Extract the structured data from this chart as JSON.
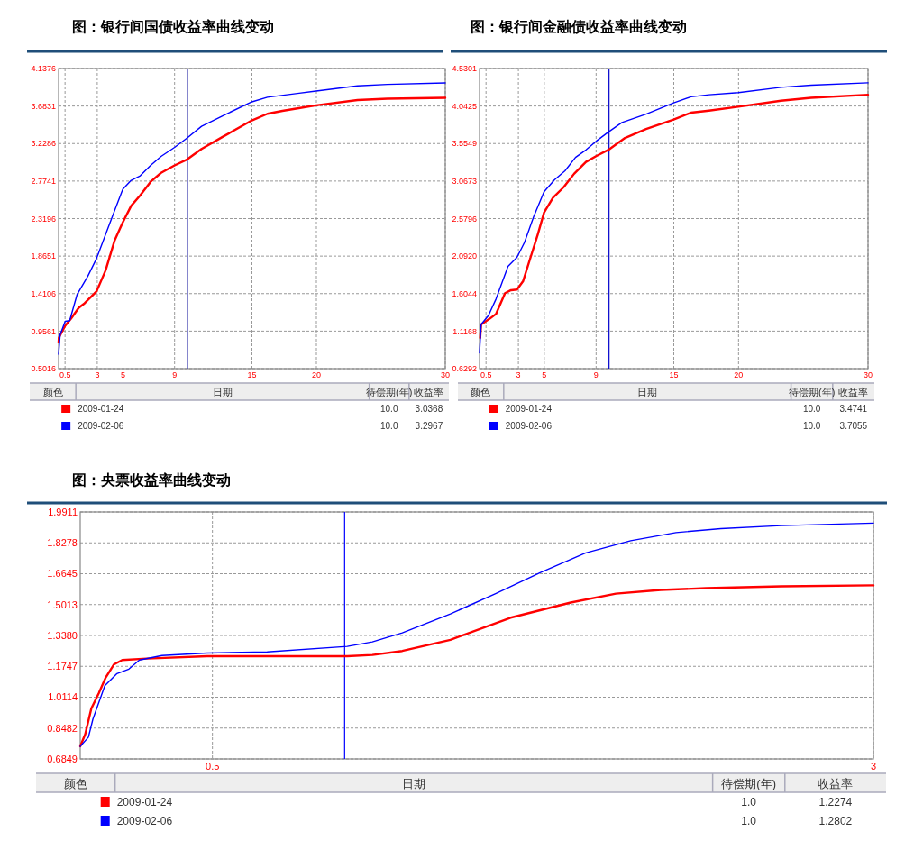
{
  "chart_data": [
    {
      "type": "line",
      "title": "图：银行间国债收益率曲线变动",
      "xlim": [
        0,
        30
      ],
      "xticks": [
        0.5,
        3,
        5,
        9,
        15,
        20,
        30
      ],
      "ylim": [
        0.5016,
        4.1376
      ],
      "yticks": [
        0.5016,
        0.9561,
        1.4106,
        1.8651,
        2.3196,
        2.7741,
        3.2286,
        3.6831,
        4.1376
      ],
      "grid": true,
      "legend": "bottom",
      "marker": "none",
      "line_style": "solid",
      "series": [
        {
          "name": "2009-01-24",
          "color": "#ff0000",
          "x": [
            0,
            0.02,
            0.51,
            0.98,
            1.56,
            2.02,
            2.95,
            3.65,
            4.35,
            4.98,
            5.63,
            6.33,
            7.14,
            7.95,
            9.0,
            9.98,
            11.09,
            12.72,
            15.0,
            16.2,
            17.37,
            18.53,
            19.98,
            23.19,
            25.51,
            30
          ],
          "values": [
            0.821,
            0.876,
            1.021,
            1.111,
            1.239,
            1.294,
            1.439,
            1.693,
            2.056,
            2.274,
            2.474,
            2.601,
            2.765,
            2.874,
            2.964,
            3.037,
            3.164,
            3.309,
            3.509,
            3.589,
            3.625,
            3.654,
            3.691,
            3.756,
            3.771,
            3.782
          ]
        },
        {
          "name": "2009-02-06",
          "color": "#0000ff",
          "x": [
            0,
            0.12,
            0.51,
            0.86,
            1.44,
            2.26,
            2.95,
            3.65,
            4.35,
            4.98,
            5.63,
            6.33,
            7.14,
            7.95,
            9.0,
            9.98,
            11.09,
            12.72,
            15.0,
            16.2,
            18.53,
            19.98,
            23.19,
            25.51,
            30
          ],
          "values": [
            0.676,
            0.912,
            1.075,
            1.083,
            1.402,
            1.62,
            1.838,
            2.129,
            2.419,
            2.674,
            2.783,
            2.837,
            2.964,
            3.073,
            3.182,
            3.297,
            3.437,
            3.564,
            3.734,
            3.789,
            3.836,
            3.865,
            3.927,
            3.945,
            3.963
          ]
        }
      ],
      "ref_lines": [
        {
          "axis": "x",
          "value": 10,
          "color": "#3333aa"
        }
      ],
      "annotations": [
        "颜色",
        "日期",
        "待偿期(年)",
        "收益率",
        "10.0",
        "3.0368",
        "10.0",
        "3.2967"
      ]
    },
    {
      "type": "line",
      "title": "图：银行间金融债收益率曲线变动",
      "xlim": [
        0,
        30
      ],
      "xticks": [
        0.5,
        3,
        5,
        9,
        15,
        20,
        30
      ],
      "ylim": [
        0.6292,
        4.5301
      ],
      "yticks": [
        0.6292,
        1.1168,
        1.6044,
        {
          "value": 2.092,
          "label": "2.0920"
        },
        2.5796,
        3.0673,
        3.5549,
        4.0425,
        4.5301
      ],
      "grid": true,
      "legend": "bottom",
      "marker": "none",
      "line_style": "solid",
      "series": [
        {
          "name": "2009-01-24",
          "color": "#ff0000",
          "x": [
            0.05,
            0.12,
            0.81,
            1.27,
            1.97,
            2.43,
            2.89,
            3.36,
            3.94,
            4.52,
            4.98,
            5.67,
            6.49,
            7.3,
            8.22,
            9.03,
            9.96,
            11.23,
            12.86,
            14.99,
            16.33,
            17.72,
            19.99,
            23.28,
            25.6,
            30
          ],
          "values": [
            1.029,
            1.203,
            1.281,
            1.339,
            1.61,
            1.649,
            1.657,
            1.765,
            2.076,
            2.386,
            2.658,
            2.851,
            2.987,
            3.161,
            3.316,
            3.394,
            3.474,
            3.627,
            3.743,
            3.867,
            3.956,
            3.983,
            4.034,
            4.112,
            4.15,
            4.189
          ]
        },
        {
          "name": "2009-02-06",
          "color": "#0000ff",
          "x": [
            0,
            0.12,
            0.69,
            1.27,
            2.2,
            2.89,
            3.47,
            4.17,
            4.98,
            5.79,
            6.6,
            7.41,
            8.22,
            9.03,
            9.96,
            11.0,
            12.86,
            14.99,
            16.33,
            17.72,
            19.99,
            23.28,
            25.6,
            30
          ],
          "values": [
            0.835,
            1.203,
            1.32,
            1.533,
            1.959,
            2.076,
            2.269,
            2.599,
            2.929,
            3.084,
            3.2,
            3.375,
            3.472,
            3.588,
            3.705,
            3.828,
            3.937,
            4.084,
            4.162,
            4.189,
            4.216,
            4.286,
            4.313,
            4.344
          ]
        }
      ],
      "ref_lines": [
        {
          "axis": "x",
          "value": 10,
          "color": "#0000cc"
        }
      ],
      "annotations": [
        "颜色",
        "日期",
        "待偿期(年)",
        "收益率",
        "10.0",
        "3.4741",
        "10.0",
        "3.7055"
      ]
    },
    {
      "type": "line",
      "title": "图：央票收益率曲线变动",
      "xlim": [
        0,
        3
      ],
      "xticks": [
        0.5,
        3
      ],
      "ylim": [
        0.6849,
        1.9911
      ],
      "yticks": [
        0.6849,
        0.8482,
        1.0114,
        1.1747,
        {
          "value": 1.338,
          "label": "1.3380"
        },
        1.5013,
        1.6645,
        1.8278,
        1.9911
      ],
      "grid": true,
      "legend": "bottom",
      "marker": "none",
      "line_style": "solid",
      "series": [
        {
          "name": "2009-01-24",
          "color": "#ff0000",
          "x": [
            0,
            0.019,
            0.042,
            0.07,
            0.095,
            0.127,
            0.159,
            0.252,
            0.48,
            1.01,
            1.105,
            1.218,
            1.4,
            1.628,
            1.855,
            2.026,
            2.196,
            2.367,
            2.651,
            3.0
          ],
          "values": [
            0.752,
            0.816,
            0.952,
            1.032,
            1.112,
            1.184,
            1.208,
            1.216,
            1.228,
            1.228,
            1.235,
            1.256,
            1.315,
            1.432,
            1.512,
            1.559,
            1.579,
            1.588,
            1.598,
            1.603
          ]
        },
        {
          "name": "2009-02-06",
          "color": "#0000ff",
          "x": [
            0,
            0.031,
            0.048,
            0.093,
            0.139,
            0.184,
            0.224,
            0.309,
            0.48,
            0.707,
            1.01,
            1.105,
            1.218,
            1.4,
            1.571,
            1.741,
            1.912,
            2.082,
            2.253,
            2.423,
            2.651,
            3.0
          ],
          "values": [
            0.752,
            0.8,
            0.896,
            1.072,
            1.136,
            1.16,
            1.208,
            1.232,
            1.245,
            1.251,
            1.28,
            1.304,
            1.352,
            1.452,
            1.559,
            1.671,
            1.775,
            1.839,
            1.882,
            1.903,
            1.919,
            1.932
          ]
        }
      ],
      "ref_lines": [
        {
          "axis": "x",
          "value": 1,
          "color": "#0000ff"
        }
      ],
      "annotations": [
        "颜色",
        "日期",
        "待偿期(年)",
        "收益率",
        "1.0",
        "1.2274",
        "1.0",
        "1.2802"
      ]
    }
  ]
}
